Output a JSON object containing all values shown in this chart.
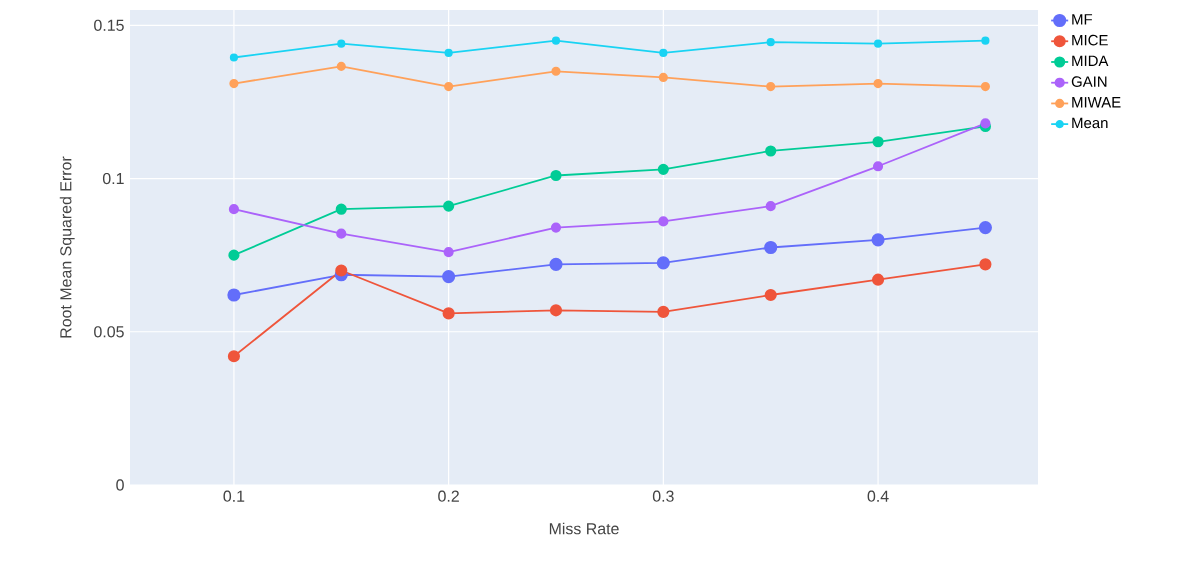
{
  "chart_data": {
    "type": "line",
    "xlabel": "Miss Rate",
    "ylabel": "Root Mean Squared Error",
    "x": [
      0.1,
      0.15,
      0.2,
      0.25,
      0.3,
      0.35,
      0.4,
      0.45
    ],
    "series": [
      {
        "name": "MF",
        "color": "#636efa",
        "values": [
          0.062,
          0.0686,
          0.068,
          0.072,
          0.0725,
          0.0775,
          0.08,
          0.084
        ]
      },
      {
        "name": "MICE",
        "color": "#ef553b",
        "values": [
          0.042,
          0.07,
          0.056,
          0.057,
          0.0565,
          0.062,
          0.067,
          0.072
        ]
      },
      {
        "name": "MIDA",
        "color": "#00cc96",
        "values": [
          0.075,
          0.09,
          0.091,
          0.101,
          0.103,
          0.109,
          0.112,
          0.117
        ]
      },
      {
        "name": "GAIN",
        "color": "#ab63fa",
        "values": [
          0.09,
          0.082,
          0.076,
          0.084,
          0.086,
          0.091,
          0.104,
          0.118
        ]
      },
      {
        "name": "MIWAE",
        "color": "#ffa15a",
        "values": [
          0.131,
          0.1366,
          0.13,
          0.135,
          0.133,
          0.13,
          0.131,
          0.13
        ]
      },
      {
        "name": "Mean",
        "color": "#19d3f3",
        "values": [
          0.1395,
          0.144,
          0.141,
          0.145,
          0.141,
          0.1445,
          0.144,
          0.145
        ]
      }
    ],
    "xlim": [
      0.0516,
      0.4745
    ],
    "ylim": [
      0,
      0.155
    ],
    "xticks": [
      0.1,
      0.2,
      0.3,
      0.4
    ],
    "yticks": [
      0,
      0.05,
      0.1,
      0.15
    ],
    "grid": true,
    "legend": "top right",
    "marker": "circle",
    "line_style": "solid"
  }
}
